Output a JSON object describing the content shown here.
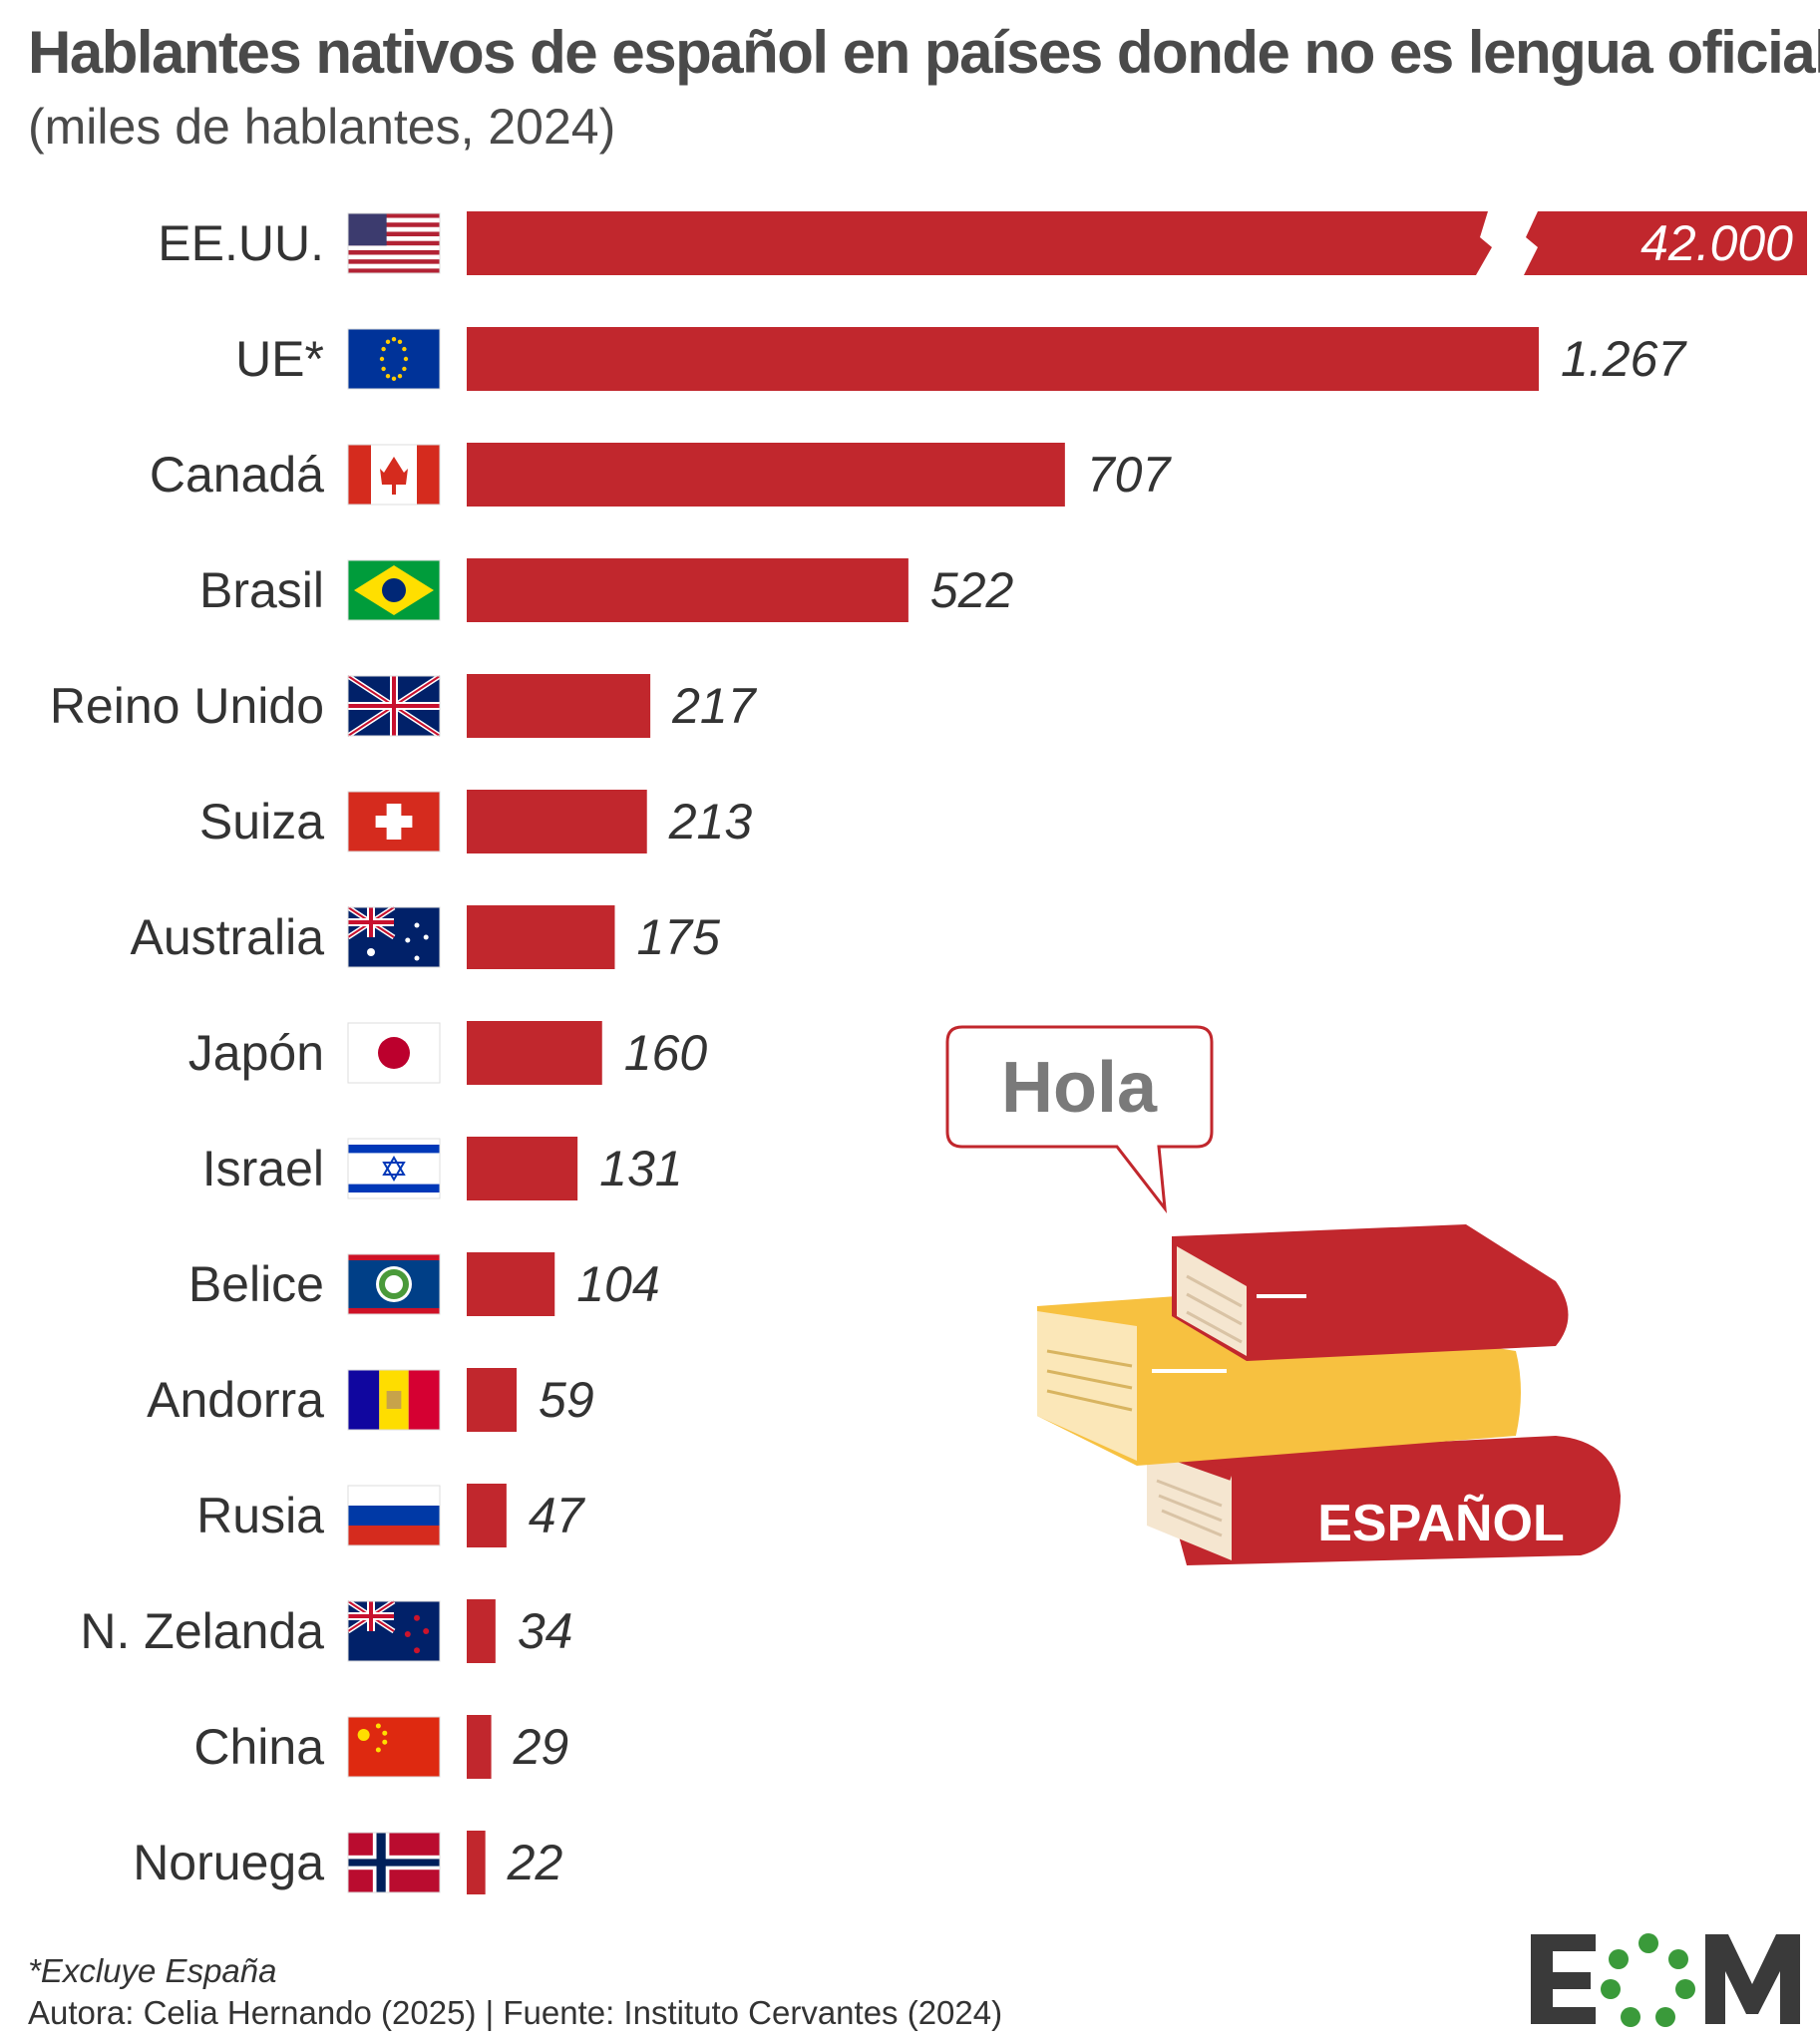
{
  "header": {
    "title": "Hablantes nativos de español en países donde no es lengua oficial",
    "subtitle": "(miles de hablantes, 2024)"
  },
  "chart_data": {
    "type": "bar",
    "orientation": "horizontal",
    "categories": [
      "EE.UU.",
      "UE*",
      "Canadá",
      "Brasil",
      "Reino Unido",
      "Suiza",
      "Australia",
      "Japón",
      "Israel",
      "Belice",
      "Andorra",
      "Rusia",
      "N. Zelanda",
      "China",
      "Noruega"
    ],
    "values": [
      42000,
      1267,
      707,
      522,
      217,
      213,
      175,
      160,
      131,
      104,
      59,
      47,
      34,
      29,
      22
    ],
    "value_labels": [
      "42.000",
      "1.267",
      "707",
      "522",
      "217",
      "213",
      "175",
      "160",
      "131",
      "104",
      "59",
      "47",
      "34",
      "29",
      "22"
    ],
    "flags": [
      "usa-flag-icon",
      "eu-flag-icon",
      "canada-flag-icon",
      "brazil-flag-icon",
      "uk-flag-icon",
      "switzerland-flag-icon",
      "australia-flag-icon",
      "japan-flag-icon",
      "israel-flag-icon",
      "belize-flag-icon",
      "andorra-flag-icon",
      "russia-flag-icon",
      "new-zealand-flag-icon",
      "china-flag-icon",
      "norway-flag-icon"
    ],
    "broken_axis": true,
    "bar_color": "#c1272d"
  },
  "illustration": {
    "speech_text": "Hola",
    "book_label": "ESPAÑOL"
  },
  "footer": {
    "footnote": "*Excluye España",
    "credits": "Autora: Celia Hernando (2025) | Fuente: Instituto Cervantes (2024)"
  },
  "logo": {
    "text": "EOM"
  }
}
